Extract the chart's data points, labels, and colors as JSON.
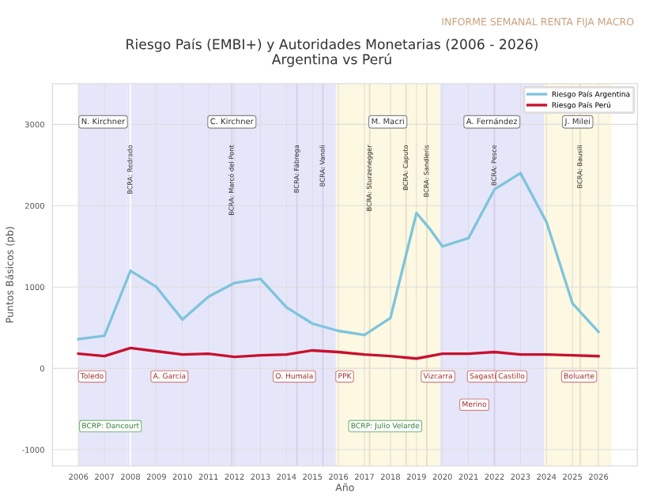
{
  "chart_data": {
    "type": "line",
    "title": "Riesgo País (EMBI+) y Autoridades Monetarias (2006 - 2026)",
    "subtitle": "Argentina vs Perú",
    "xlabel": "Año",
    "ylabel": "Puntos Básicos (pb)",
    "xlim": [
      2005,
      2027.5
    ],
    "ylim": [
      -1200,
      3500
    ],
    "xticks": [
      2006,
      2007,
      2008,
      2009,
      2010,
      2011,
      2012,
      2013,
      2014,
      2015,
      2016,
      2017,
      2018,
      2019,
      2020,
      2021,
      2022,
      2023,
      2024,
      2025,
      2026
    ],
    "yticks": [
      -1000,
      0,
      1000,
      2000,
      3000
    ],
    "grid": true,
    "legend": "top right",
    "marker": "none",
    "line_style": "solid",
    "series": [
      {
        "name": "Riesgo País Argentina",
        "color": "#7ec4dc",
        "x": [
          2006,
          2007,
          2008,
          2009,
          2010,
          2011,
          2012,
          2013,
          2014,
          2015,
          2016,
          2017,
          2018,
          2019,
          2019.5,
          2020,
          2021,
          2022,
          2023,
          2024,
          2025,
          2026
        ],
        "values": [
          360,
          400,
          1200,
          1000,
          600,
          880,
          1050,
          1100,
          750,
          550,
          460,
          410,
          620,
          1910,
          1720,
          1500,
          1600,
          2200,
          2400,
          1800,
          800,
          450
        ]
      },
      {
        "name": "Riesgo País Perú",
        "color": "#c8102e",
        "x": [
          2006,
          2007,
          2008,
          2009,
          2010,
          2011,
          2012,
          2013,
          2014,
          2015,
          2016,
          2017,
          2018,
          2019,
          2020,
          2021,
          2022,
          2023,
          2024,
          2025,
          2026
        ],
        "values": [
          180,
          150,
          250,
          210,
          170,
          180,
          140,
          160,
          170,
          220,
          200,
          170,
          150,
          120,
          180,
          180,
          200,
          170,
          170,
          160,
          150
        ]
      }
    ],
    "bands": [
      {
        "axis": "x",
        "from": 2006,
        "to": 2007.9,
        "label": "N. Kirchner",
        "color": "#e6e6fa"
      },
      {
        "axis": "x",
        "from": 2007.9,
        "to": 2015.9,
        "label": "C. Kirchner",
        "color": "#e6e6fa"
      },
      {
        "axis": "x",
        "from": 2015.9,
        "to": 2019.9,
        "label": "M. Macri",
        "color": "#fdf8e1"
      },
      {
        "axis": "x",
        "from": 2019.9,
        "to": 2023.9,
        "label": "A. Fernández",
        "color": "#e6e6fa"
      },
      {
        "axis": "x",
        "from": 2023.9,
        "to": 2026.5,
        "label": "J. Milei",
        "color": "#fdf8e1"
      }
    ],
    "ref_lines": [
      {
        "axis": "x",
        "value": 2008,
        "label": "BCRA: Redrado",
        "color": "#ffffff"
      },
      {
        "axis": "x",
        "value": 2011.9,
        "label": "BCRA: Marcó del Pont",
        "color": "#d8d0e8"
      },
      {
        "axis": "x",
        "value": 2014.4,
        "label": "BCRA: Fábrega",
        "color": "#d8d0e8"
      },
      {
        "axis": "x",
        "value": 2015.4,
        "label": "BCRA: Vanoli",
        "color": "#d8d0e8"
      },
      {
        "axis": "x",
        "value": 2017.2,
        "label": "BCRA: Sturzenegger",
        "color": "#e8e0c8"
      },
      {
        "axis": "x",
        "value": 2018.6,
        "label": "BCRA: Caputo",
        "color": "#e8e0c8"
      },
      {
        "axis": "x",
        "value": 2019.4,
        "label": "BCRA: Sandleris",
        "color": "#e8e0c8"
      },
      {
        "axis": "x",
        "value": 2022.0,
        "label": "BCRA: Pesce",
        "color": "#d8d0e8"
      },
      {
        "axis": "x",
        "value": 2025.3,
        "label": "BCRA: Bausili",
        "color": "#e8e0c8"
      }
    ],
    "annotations": [
      "INFORME SEMANAL RENTA FIJA MACRO",
      "Toledo",
      "A. García",
      "O. Humala",
      "PPK",
      "Vizcarra",
      "Sagasti",
      "Castillo",
      "Boluarte",
      "Merino",
      "BCRP: Dancourt",
      "BCRP: Julio Velarde"
    ]
  }
}
